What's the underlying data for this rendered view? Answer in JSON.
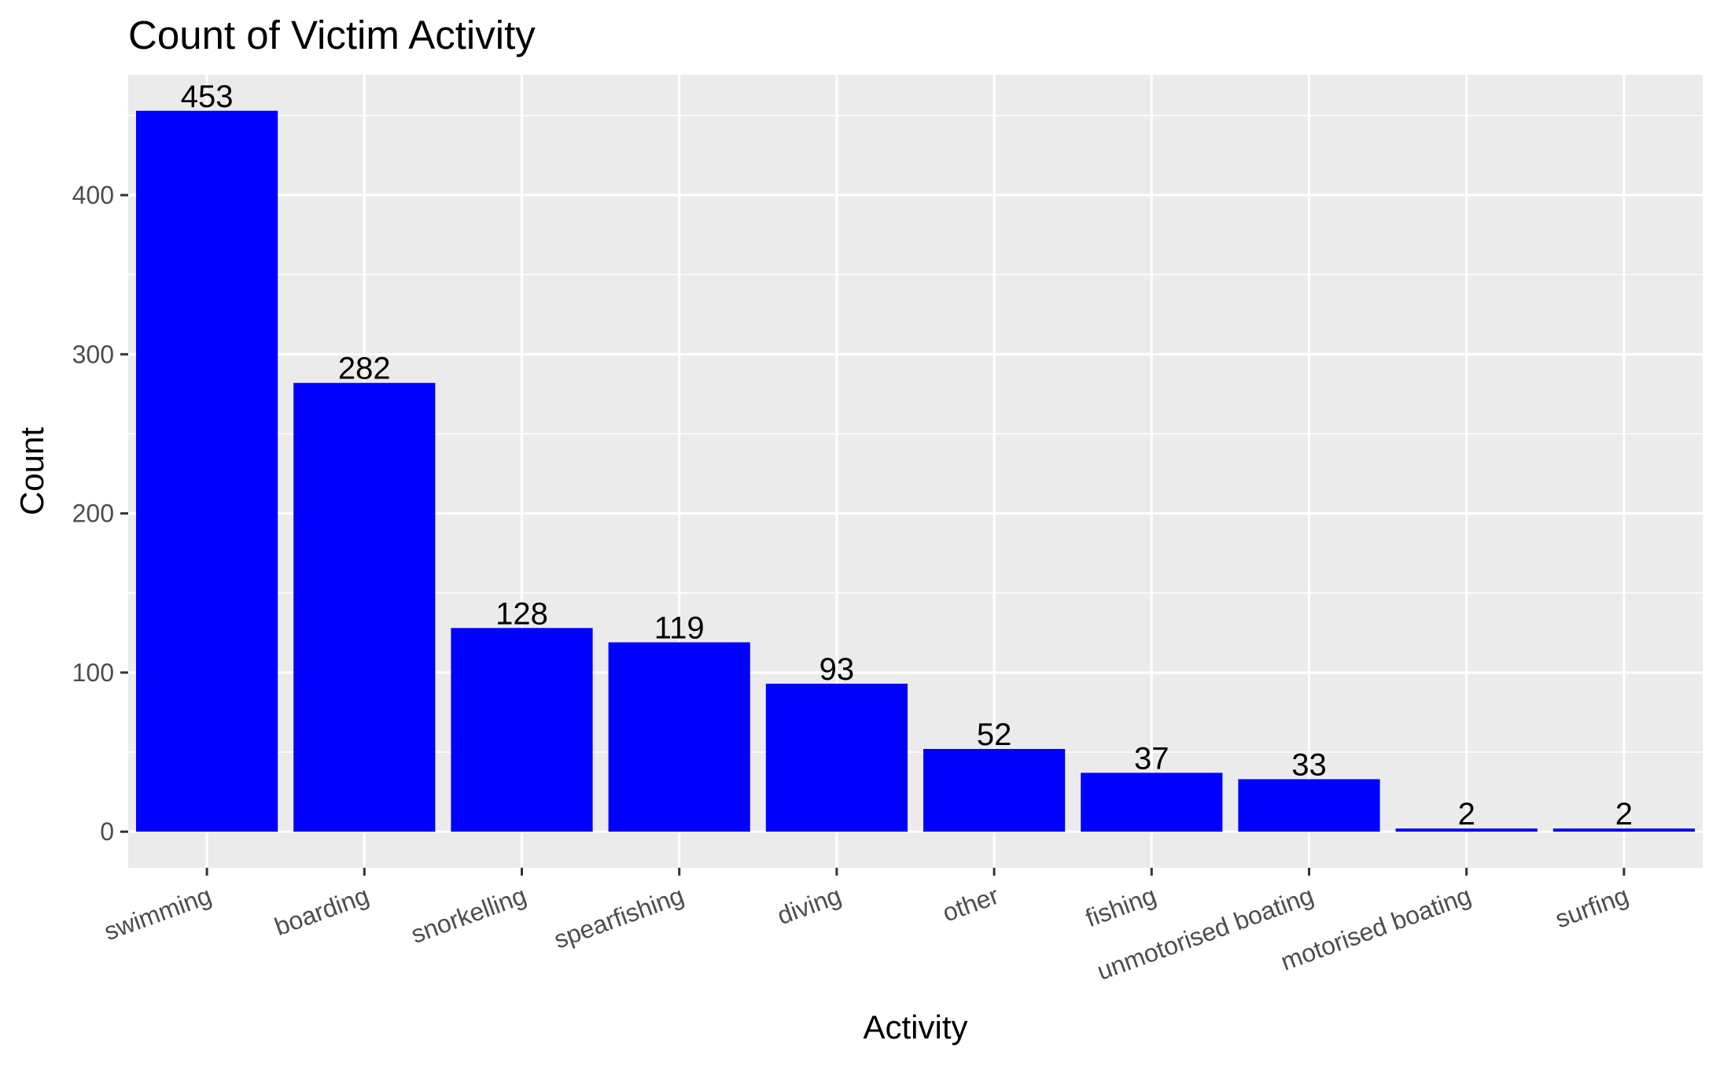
{
  "chart_data": {
    "type": "bar",
    "title": "Count of Victim Activity",
    "xlabel": "Activity",
    "ylabel": "Count",
    "categories": [
      "swimming",
      "boarding",
      "snorkelling",
      "spearfishing",
      "diving",
      "other",
      "fishing",
      "unmotorised boating",
      "motorised boating",
      "surfing"
    ],
    "values": [
      453,
      282,
      128,
      119,
      93,
      52,
      37,
      33,
      2,
      2
    ],
    "ylim": [
      -22.65,
      475.65
    ],
    "yticks": [
      0,
      100,
      200,
      300,
      400
    ],
    "grid": true,
    "legend": "none",
    "colors": {
      "bar": "#0000FF",
      "panel": "#EBEBEB",
      "grid": "#FFFFFF",
      "tick_text": "#4D4D4D",
      "text": "#000000"
    }
  }
}
